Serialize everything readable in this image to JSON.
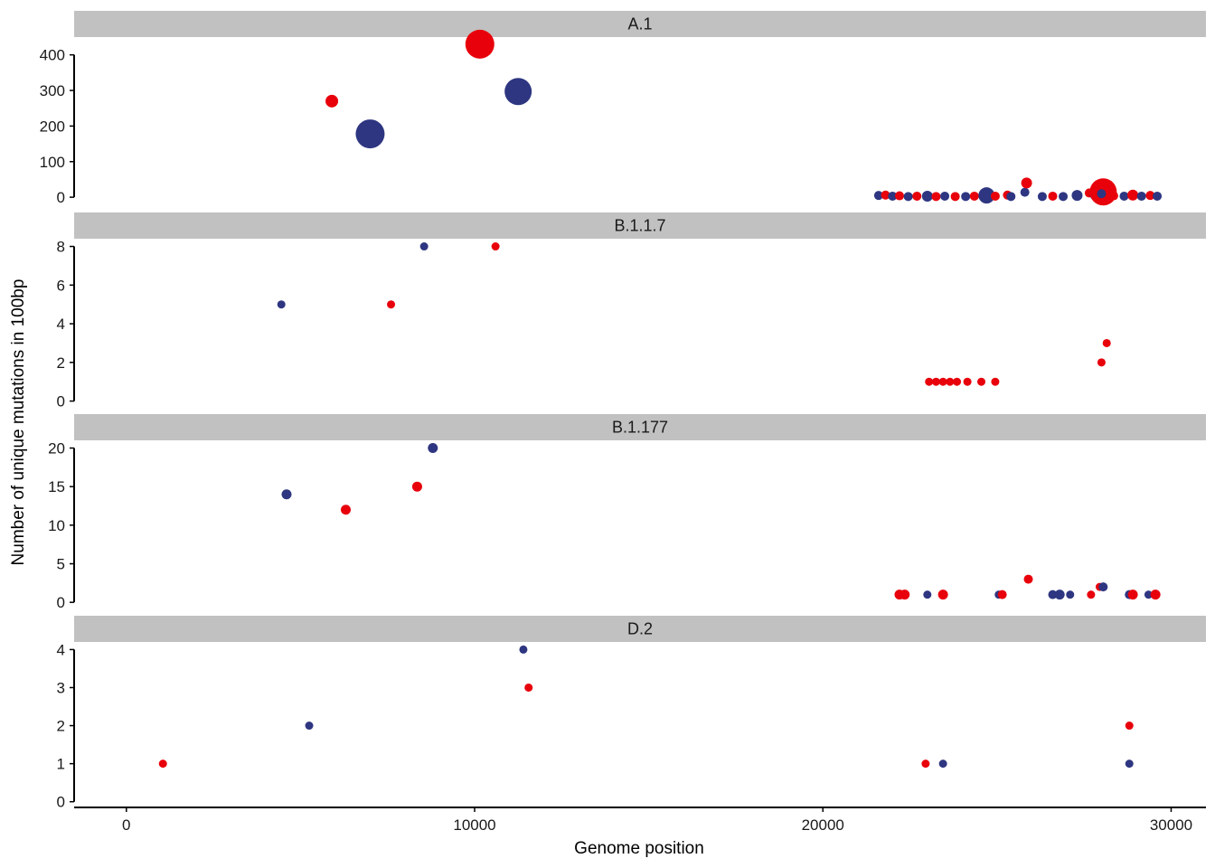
{
  "chart_data": {
    "type": "scatter",
    "xlabel": "Genome position",
    "ylabel": "Number of unique mutations in 100bp",
    "xlim": [
      -1500,
      31000
    ],
    "x_ticks": [
      0,
      10000,
      20000,
      30000
    ],
    "colors": {
      "red": "#e8000b",
      "blue": "#2e3681",
      "strip": "#c1c1c1"
    },
    "panels": [
      {
        "label": "A.1",
        "ylim": [
          -20,
          450
        ],
        "y_ticks": [
          0,
          100,
          200,
          300,
          400
        ],
        "points": [
          {
            "x": 5900,
            "y": 270,
            "c": "red",
            "s": 7
          },
          {
            "x": 7000,
            "y": 178,
            "c": "blue",
            "s": 16
          },
          {
            "x": 10150,
            "y": 430,
            "c": "red",
            "s": 16
          },
          {
            "x": 11250,
            "y": 297,
            "c": "blue",
            "s": 15
          },
          {
            "x": 21600,
            "y": 5,
            "c": "blue",
            "s": 5
          },
          {
            "x": 21800,
            "y": 6,
            "c": "red",
            "s": 5
          },
          {
            "x": 22000,
            "y": 3,
            "c": "blue",
            "s": 5
          },
          {
            "x": 22200,
            "y": 4,
            "c": "red",
            "s": 5
          },
          {
            "x": 22450,
            "y": 2,
            "c": "blue",
            "s": 5
          },
          {
            "x": 22700,
            "y": 3,
            "c": "red",
            "s": 5
          },
          {
            "x": 23000,
            "y": 3,
            "c": "blue",
            "s": 6
          },
          {
            "x": 23250,
            "y": 2,
            "c": "red",
            "s": 5
          },
          {
            "x": 23500,
            "y": 3,
            "c": "blue",
            "s": 5
          },
          {
            "x": 23800,
            "y": 2,
            "c": "red",
            "s": 5
          },
          {
            "x": 24100,
            "y": 2,
            "c": "blue",
            "s": 5
          },
          {
            "x": 24350,
            "y": 3,
            "c": "red",
            "s": 5
          },
          {
            "x": 24700,
            "y": 5,
            "c": "blue",
            "s": 9
          },
          {
            "x": 24950,
            "y": 3,
            "c": "red",
            "s": 5
          },
          {
            "x": 25300,
            "y": 6,
            "c": "red",
            "s": 5
          },
          {
            "x": 25400,
            "y": 2,
            "c": "blue",
            "s": 5
          },
          {
            "x": 25800,
            "y": 14,
            "c": "blue",
            "s": 5
          },
          {
            "x": 25850,
            "y": 40,
            "c": "red",
            "s": 6
          },
          {
            "x": 26300,
            "y": 2,
            "c": "blue",
            "s": 5
          },
          {
            "x": 26600,
            "y": 3,
            "c": "red",
            "s": 5
          },
          {
            "x": 26900,
            "y": 2,
            "c": "blue",
            "s": 5
          },
          {
            "x": 27300,
            "y": 5,
            "c": "blue",
            "s": 6
          },
          {
            "x": 27650,
            "y": 12,
            "c": "red",
            "s": 5
          },
          {
            "x": 27800,
            "y": 5,
            "c": "blue",
            "s": 5
          },
          {
            "x": 28050,
            "y": 15,
            "c": "red",
            "s": 15
          },
          {
            "x": 28000,
            "y": 10,
            "c": "blue",
            "s": 5
          },
          {
            "x": 28350,
            "y": 4,
            "c": "red",
            "s": 5
          },
          {
            "x": 28650,
            "y": 3,
            "c": "blue",
            "s": 5
          },
          {
            "x": 28900,
            "y": 6,
            "c": "red",
            "s": 6
          },
          {
            "x": 29150,
            "y": 3,
            "c": "blue",
            "s": 5
          },
          {
            "x": 29400,
            "y": 5,
            "c": "red",
            "s": 5
          },
          {
            "x": 29600,
            "y": 3,
            "c": "blue",
            "s": 5
          }
        ]
      },
      {
        "label": "B.1.1.7",
        "ylim": [
          -0.3,
          8.4
        ],
        "y_ticks": [
          0,
          2,
          4,
          6,
          8
        ],
        "points": [
          {
            "x": 4450,
            "y": 5,
            "c": "blue",
            "s": 4.5
          },
          {
            "x": 7600,
            "y": 5,
            "c": "red",
            "s": 4.5
          },
          {
            "x": 8550,
            "y": 8,
            "c": "blue",
            "s": 4.5
          },
          {
            "x": 10600,
            "y": 8,
            "c": "red",
            "s": 4.5
          },
          {
            "x": 23050,
            "y": 1,
            "c": "red",
            "s": 4.5
          },
          {
            "x": 23250,
            "y": 1,
            "c": "red",
            "s": 4.5
          },
          {
            "x": 23450,
            "y": 1,
            "c": "red",
            "s": 4.5
          },
          {
            "x": 23650,
            "y": 1,
            "c": "red",
            "s": 4.5
          },
          {
            "x": 23850,
            "y": 1,
            "c": "red",
            "s": 4.5
          },
          {
            "x": 24150,
            "y": 1,
            "c": "red",
            "s": 4.5
          },
          {
            "x": 24550,
            "y": 1,
            "c": "red",
            "s": 4.5
          },
          {
            "x": 24950,
            "y": 1,
            "c": "red",
            "s": 4.5
          },
          {
            "x": 28000,
            "y": 2,
            "c": "red",
            "s": 4.5
          },
          {
            "x": 28150,
            "y": 3,
            "c": "red",
            "s": 4.5
          }
        ]
      },
      {
        "label": "B.1.177",
        "ylim": [
          -0.8,
          21
        ],
        "y_ticks": [
          0,
          5,
          10,
          15,
          20
        ],
        "points": [
          {
            "x": 4600,
            "y": 14,
            "c": "blue",
            "s": 5.5
          },
          {
            "x": 6300,
            "y": 12,
            "c": "red",
            "s": 5.5
          },
          {
            "x": 8350,
            "y": 15,
            "c": "red",
            "s": 5.5
          },
          {
            "x": 8800,
            "y": 20,
            "c": "blue",
            "s": 5.5
          },
          {
            "x": 22200,
            "y": 1,
            "c": "red",
            "s": 5.5
          },
          {
            "x": 22350,
            "y": 1,
            "c": "red",
            "s": 5.5
          },
          {
            "x": 23000,
            "y": 1,
            "c": "blue",
            "s": 4.5
          },
          {
            "x": 23450,
            "y": 1,
            "c": "red",
            "s": 5.5
          },
          {
            "x": 25050,
            "y": 1,
            "c": "blue",
            "s": 4.5
          },
          {
            "x": 25150,
            "y": 1,
            "c": "red",
            "s": 5
          },
          {
            "x": 25900,
            "y": 3,
            "c": "red",
            "s": 5
          },
          {
            "x": 26600,
            "y": 1,
            "c": "blue",
            "s": 5
          },
          {
            "x": 26800,
            "y": 1,
            "c": "blue",
            "s": 5.5
          },
          {
            "x": 27100,
            "y": 1,
            "c": "blue",
            "s": 4.5
          },
          {
            "x": 27700,
            "y": 1,
            "c": "red",
            "s": 4.5
          },
          {
            "x": 27950,
            "y": 2,
            "c": "red",
            "s": 4.5
          },
          {
            "x": 28050,
            "y": 2,
            "c": "blue",
            "s": 5
          },
          {
            "x": 28800,
            "y": 1,
            "c": "blue",
            "s": 5
          },
          {
            "x": 28900,
            "y": 1,
            "c": "red",
            "s": 5.5
          },
          {
            "x": 29350,
            "y": 1,
            "c": "blue",
            "s": 4.5
          },
          {
            "x": 29550,
            "y": 1,
            "c": "red",
            "s": 5.5
          }
        ]
      },
      {
        "label": "D.2",
        "ylim": [
          -0.15,
          4.2
        ],
        "y_ticks": [
          0,
          1,
          2,
          3,
          4
        ],
        "points": [
          {
            "x": 1050,
            "y": 1,
            "c": "red",
            "s": 4.5
          },
          {
            "x": 5250,
            "y": 2,
            "c": "blue",
            "s": 4.5
          },
          {
            "x": 11400,
            "y": 4,
            "c": "blue",
            "s": 4.5
          },
          {
            "x": 11550,
            "y": 3,
            "c": "red",
            "s": 4.5
          },
          {
            "x": 22950,
            "y": 1,
            "c": "red",
            "s": 4.5
          },
          {
            "x": 23450,
            "y": 1,
            "c": "blue",
            "s": 4.5
          },
          {
            "x": 28800,
            "y": 2,
            "c": "red",
            "s": 4.5
          },
          {
            "x": 28800,
            "y": 1,
            "c": "blue",
            "s": 4.5
          }
        ]
      }
    ]
  }
}
